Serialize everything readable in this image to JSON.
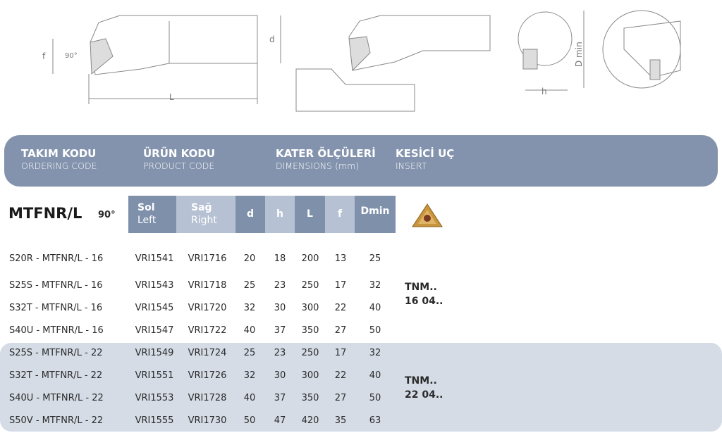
{
  "drawing_labels": {
    "f": "f",
    "angle": "90°",
    "d": "d",
    "L": "L",
    "h": "h",
    "dmin": "D min"
  },
  "banner": {
    "ordering": {
      "tr": "TAKIM KODU",
      "en": "ORDERING CODE"
    },
    "product": {
      "tr": "ÜRÜN KODU",
      "en": "PRODUCT CODE"
    },
    "dimensions": {
      "tr": "KATER ÖLÇÜLERİ",
      "en": "DIMENSIONS (mm)"
    },
    "insert": {
      "tr": "KESİCİ UÇ",
      "en": "INSERT"
    }
  },
  "model": "MTFNR/L",
  "angle": "90°",
  "headers": {
    "sol": "Sol",
    "left": "Left",
    "sag": "Sağ",
    "right": "Right",
    "d": "d",
    "h": "h",
    "L": "L",
    "f": "f",
    "dmin": "Dmin"
  },
  "colors": {
    "banner": "#8393ad",
    "dark_cell": "#7f90ab",
    "light_cell": "#b6c1d3",
    "group_bg": "#d5dce6",
    "insert_gold": "#c8953c"
  },
  "rows": [
    {
      "code": "S20R - MTFNR/L - 16",
      "sol": "VRI1541",
      "sag": "VRI1716",
      "d": "20",
      "h": "18",
      "L": "200",
      "f": "13",
      "dmin": "25"
    },
    {
      "code": "S25S - MTFNR/L - 16",
      "sol": "VRI1543",
      "sag": "VRI1718",
      "d": "25",
      "h": "23",
      "L": "250",
      "f": "17",
      "dmin": "32"
    },
    {
      "code": "S32T - MTFNR/L - 16",
      "sol": "VRI1545",
      "sag": "VRI1720",
      "d": "32",
      "h": "30",
      "L": "300",
      "f": "22",
      "dmin": "40"
    },
    {
      "code": "S40U - MTFNR/L - 16",
      "sol": "VRI1547",
      "sag": "VRI1722",
      "d": "40",
      "h": "37",
      "L": "350",
      "f": "27",
      "dmin": "50"
    },
    {
      "code": "S25S - MTFNR/L - 22",
      "sol": "VRI1549",
      "sag": "VRI1724",
      "d": "25",
      "h": "23",
      "L": "250",
      "f": "17",
      "dmin": "32"
    },
    {
      "code": "S32T - MTFNR/L - 22",
      "sol": "VRI1551",
      "sag": "VRI1726",
      "d": "32",
      "h": "30",
      "L": "300",
      "f": "22",
      "dmin": "40"
    },
    {
      "code": "S40U - MTFNR/L - 22",
      "sol": "VRI1553",
      "sag": "VRI1728",
      "d": "40",
      "h": "37",
      "L": "350",
      "f": "27",
      "dmin": "50"
    },
    {
      "code": "S50V - MTFNR/L - 22",
      "sol": "VRI1555",
      "sag": "VRI1730",
      "d": "50",
      "h": "47",
      "L": "420",
      "f": "35",
      "dmin": "63"
    }
  ],
  "inserts": [
    {
      "l1": "TNM..",
      "l2": "16 04.."
    },
    {
      "l1": "TNM..",
      "l2": "22 04.."
    }
  ]
}
